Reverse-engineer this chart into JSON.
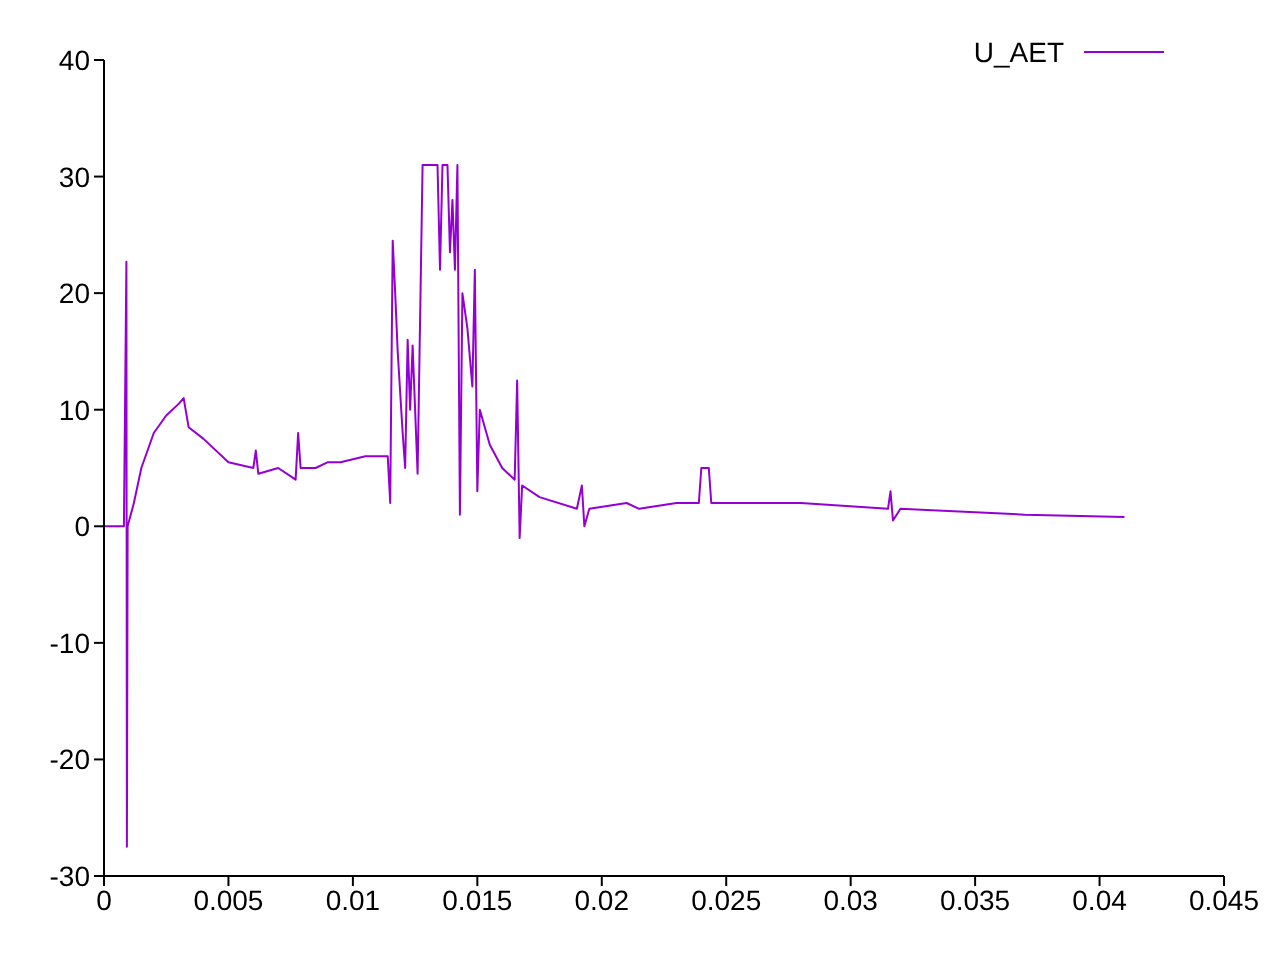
{
  "chart_data": {
    "type": "line",
    "xlim": [
      0,
      0.045
    ],
    "xticks": [
      0,
      0.005,
      0.01,
      0.015,
      0.02,
      0.025,
      0.03,
      0.035,
      0.04,
      0.045
    ],
    "ylim": [
      -30,
      40
    ],
    "yticks": [
      -30,
      -20,
      -10,
      0,
      10,
      20,
      30,
      40
    ],
    "grid": false,
    "legend": "top right",
    "marker": "none",
    "line_style": "solid",
    "series": [
      {
        "name": "U_AET",
        "color": "#9400d3",
        "x": [
          0,
          0.0008,
          0.0009,
          0.00092,
          0.00095,
          0.0012,
          0.0015,
          0.002,
          0.0025,
          0.003,
          0.0032,
          0.0034,
          0.004,
          0.005,
          0.006,
          0.0061,
          0.0062,
          0.007,
          0.0077,
          0.0078,
          0.0079,
          0.0085,
          0.009,
          0.0095,
          0.0105,
          0.0114,
          0.0115,
          0.0116,
          0.0117,
          0.0118,
          0.012,
          0.0121,
          0.0122,
          0.0123,
          0.0124,
          0.0126,
          0.0128,
          0.0134,
          0.0135,
          0.0136,
          0.0138,
          0.0139,
          0.014,
          0.0141,
          0.0142,
          0.0143,
          0.0144,
          0.0146,
          0.0148,
          0.0149,
          0.015,
          0.0151,
          0.0155,
          0.016,
          0.0165,
          0.0166,
          0.0167,
          0.0168,
          0.0175,
          0.019,
          0.0192,
          0.0193,
          0.0195,
          0.021,
          0.0215,
          0.023,
          0.0239,
          0.024,
          0.0243,
          0.0244,
          0.026,
          0.028,
          0.0315,
          0.0316,
          0.0317,
          0.032,
          0.035,
          0.037,
          0.041
        ],
        "values": [
          0,
          0,
          22.7,
          -27.5,
          0,
          2,
          5,
          8,
          9.5,
          10.5,
          11,
          8.5,
          7.5,
          5.5,
          5,
          6.5,
          4.5,
          5,
          4,
          8,
          5,
          5,
          5.5,
          5.5,
          6,
          6,
          2,
          24.5,
          20,
          15,
          8,
          5,
          16,
          10,
          15.5,
          4.5,
          31,
          31,
          22,
          31,
          31,
          23.5,
          28,
          22,
          31,
          1,
          20,
          17,
          12,
          22,
          3,
          10,
          7,
          5,
          4,
          12.5,
          -1,
          3.5,
          2.5,
          1.5,
          3.5,
          0,
          1.5,
          2,
          1.5,
          2,
          2,
          5,
          5,
          2,
          2,
          2,
          1.5,
          3,
          0.5,
          1.5,
          1.2,
          1,
          0.8
        ]
      }
    ]
  }
}
